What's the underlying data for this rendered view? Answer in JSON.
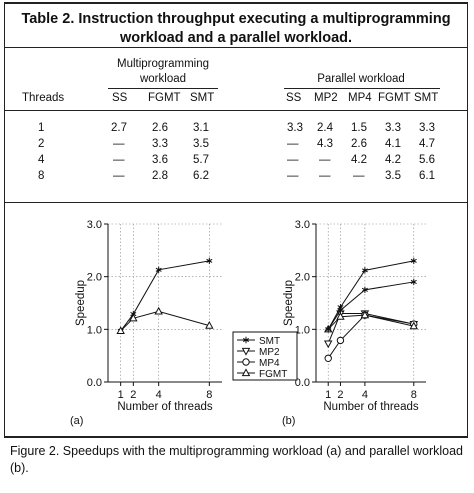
{
  "table": {
    "title": "Table 2. Instruction throughput executing a multiprogramming workload and a parallel workload.",
    "group_multi": "Multiprogramming workload",
    "group_multi_l1": "Multiprogramming",
    "group_multi_l2": "workload",
    "group_parallel": "Parallel workload",
    "col_threads": "Threads",
    "multi_cols": [
      "SS",
      "FGMT",
      "SMT"
    ],
    "parallel_cols": [
      "SS",
      "MP2",
      "MP4",
      "FGMT",
      "SMT"
    ],
    "rows": [
      {
        "threads": "1",
        "multi": [
          "2.7",
          "2.6",
          "3.1"
        ],
        "parallel": [
          "3.3",
          "2.4",
          "1.5",
          "3.3",
          "3.3"
        ]
      },
      {
        "threads": "2",
        "multi": [
          "—",
          "3.3",
          "3.5"
        ],
        "parallel": [
          "—",
          "4.3",
          "2.6",
          "4.1",
          "4.7"
        ]
      },
      {
        "threads": "4",
        "multi": [
          "—",
          "3.6",
          "5.7"
        ],
        "parallel": [
          "—",
          "—",
          "4.2",
          "4.2",
          "5.6"
        ]
      },
      {
        "threads": "8",
        "multi": [
          "—",
          "2.8",
          "6.2"
        ],
        "parallel": [
          "—",
          "—",
          "—",
          "3.5",
          "6.1"
        ]
      }
    ]
  },
  "chart_data": [
    {
      "type": "line",
      "panel_label": "(a)",
      "xlabel": "Number of threads",
      "ylabel": "Speedup",
      "x": [
        1,
        2,
        4,
        8
      ],
      "xticks": [
        "1",
        "2",
        "4",
        "8"
      ],
      "yticks": [
        "0.0",
        "1.0",
        "2.0",
        "3.0"
      ],
      "ylim": [
        0,
        3
      ],
      "grid": true,
      "series": [
        {
          "name": "SMT",
          "marker": "asterisk",
          "x": [
            1,
            2,
            4,
            8
          ],
          "values": [
            0.97,
            1.29,
            2.13,
            2.3
          ]
        },
        {
          "name": "FGMT",
          "marker": "triangle-up",
          "x": [
            1,
            2,
            4,
            8
          ],
          "values": [
            0.97,
            1.21,
            1.34,
            1.07
          ]
        }
      ]
    },
    {
      "type": "line",
      "panel_label": "(b)",
      "xlabel": "Number of threads",
      "ylabel": "Speedup",
      "x": [
        1,
        2,
        4,
        8
      ],
      "xticks": [
        "1",
        "2",
        "4",
        "8"
      ],
      "yticks": [
        "0.0",
        "1.0",
        "2.0",
        "3.0"
      ],
      "ylim": [
        0,
        3
      ],
      "grid": true,
      "legend": [
        "SMT",
        "MP2",
        "MP4",
        "FGMT"
      ],
      "legend_placement": "between panels",
      "series": [
        {
          "name": "SMT",
          "marker": "asterisk",
          "x": [
            1,
            2,
            4,
            8
          ],
          "values": [
            1.0,
            1.42,
            2.12,
            2.3
          ]
        },
        {
          "name": "MP2",
          "marker": "triangle-down",
          "x": [
            1,
            2,
            4,
            8
          ],
          "values": [
            0.73,
            1.3,
            1.3,
            1.1
          ]
        },
        {
          "name": "MP4",
          "marker": "circle",
          "x": [
            1,
            2,
            4,
            8
          ],
          "values": [
            0.45,
            0.79,
            1.27,
            1.1
          ]
        },
        {
          "name": "FGMT",
          "marker": "triangle-up",
          "x": [
            1,
            2,
            4,
            8
          ],
          "values": [
            1.0,
            1.24,
            1.27,
            1.06
          ]
        },
        {
          "name": "",
          "marker": "asterisk",
          "x": [
            1,
            2,
            4,
            8
          ],
          "values": [
            1.0,
            1.36,
            1.75,
            1.9
          ]
        }
      ]
    }
  ],
  "caption": "Figure 2. Speedups with the multiprogramming workload (a) and parallel workload (b)."
}
